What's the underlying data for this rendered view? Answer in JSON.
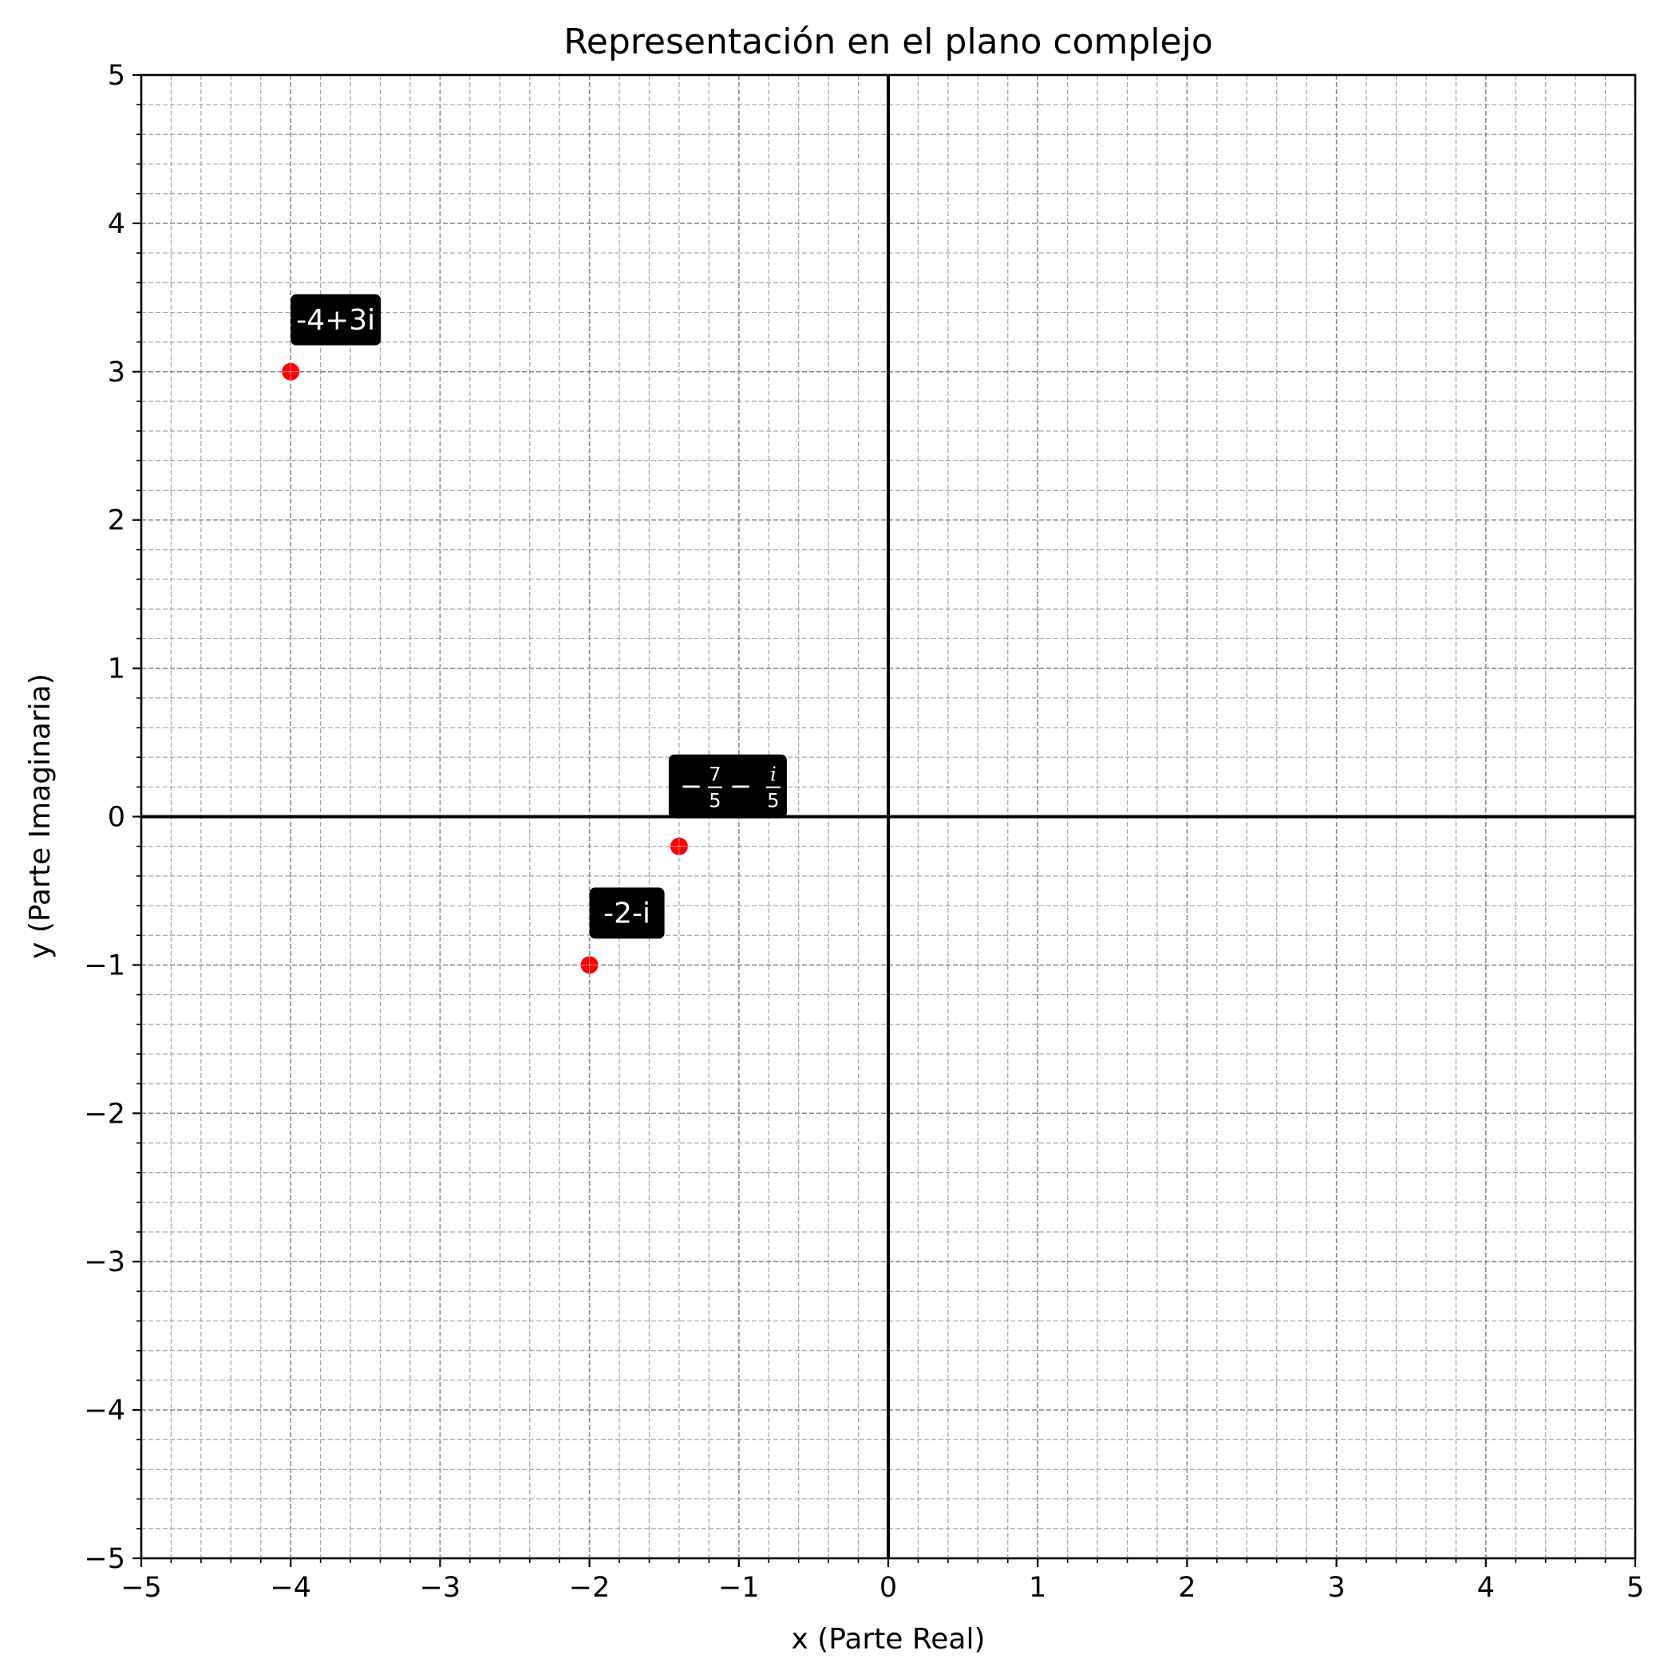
{
  "chart_data": {
    "type": "scatter",
    "title": "Representación en el plano complejo",
    "xlabel": "x (Parte Real)",
    "ylabel": "y (Parte Imaginaria)",
    "xlim": [
      -5,
      5
    ],
    "ylim": [
      -5,
      5
    ],
    "x_ticks": [
      -5,
      -4,
      -3,
      -2,
      -1,
      0,
      1,
      2,
      3,
      4,
      5
    ],
    "y_ticks": [
      -5,
      -4,
      -3,
      -2,
      -1,
      0,
      1,
      2,
      3,
      4,
      5
    ],
    "x_tick_labels": [
      "−5",
      "−4",
      "−3",
      "−2",
      "−1",
      "0",
      "1",
      "2",
      "3",
      "4",
      "5"
    ],
    "y_tick_labels": [
      "−5",
      "−4",
      "−3",
      "−2",
      "−1",
      "0",
      "1",
      "2",
      "3",
      "4",
      "5"
    ],
    "minor_step": 0.2,
    "grid": true,
    "grid_style": "dashed",
    "axis_lines_at_zero": true,
    "point_color": "#ff0000",
    "label_box_color": "#000000",
    "label_text_color": "#ffffff",
    "points": [
      {
        "x": -4,
        "y": 3,
        "label": "-4+3i"
      },
      {
        "x": -1.4,
        "y": -0.2,
        "label": "−7/5 − i/5",
        "label_parts": {
          "minus1": "−",
          "num1": "7",
          "den1": "5",
          "minus2": "−",
          "num2": "i",
          "den2": "5"
        }
      },
      {
        "x": -2,
        "y": -1,
        "label": "-2-i"
      }
    ]
  }
}
